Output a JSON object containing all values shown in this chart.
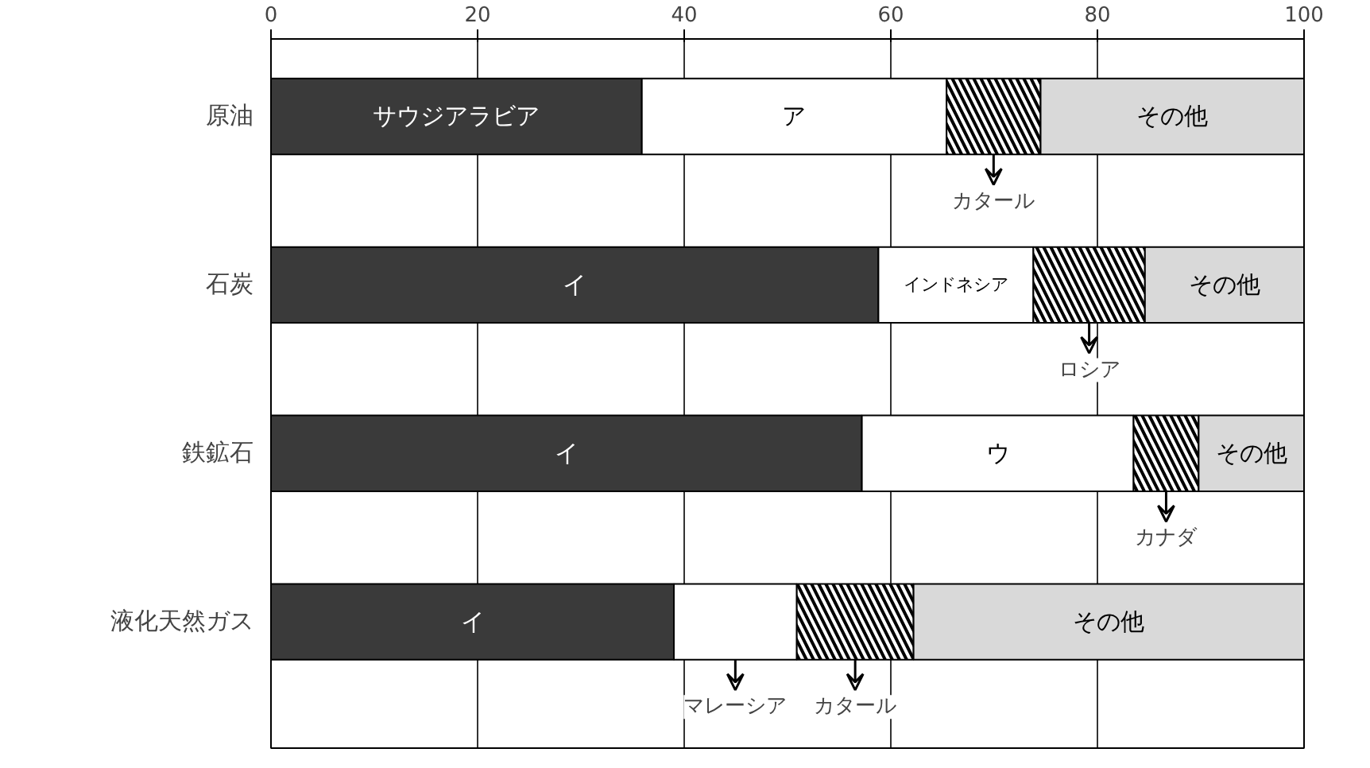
{
  "chart_data": {
    "type": "bar",
    "orientation": "horizontal",
    "stacked": true,
    "categories": [
      "原油",
      "石炭",
      "鉄鉱石",
      "液化天然ガス"
    ],
    "series": [
      {
        "color": "#3a3a3a",
        "values": [
          35.9,
          58.8,
          57.2,
          39.0
        ],
        "value_labels": [
          "サウジアラビア",
          "イ",
          "イ",
          "イ"
        ]
      },
      {
        "color": "#ffffff",
        "values": [
          29.5,
          15.0,
          26.3,
          11.9
        ],
        "value_labels": [
          "ア",
          "インドネシア",
          "ウ",
          "マレーシア"
        ]
      },
      {
        "color": "#ffffff",
        "values": [
          9.1,
          10.8,
          6.3,
          11.3
        ],
        "value_labels": [
          "カタール",
          "ロシア",
          "カナダ",
          "カタール"
        ]
      },
      {
        "color": "#d9d9d9",
        "values": [
          25.5,
          15.4,
          10.2,
          37.8
        ],
        "value_labels": [
          "その他",
          "その他",
          "その他",
          "その他"
        ]
      }
    ],
    "xlim": [
      0,
      100
    ],
    "xticks": [
      0,
      20,
      40,
      60,
      80,
      100
    ],
    "grid": "x"
  }
}
